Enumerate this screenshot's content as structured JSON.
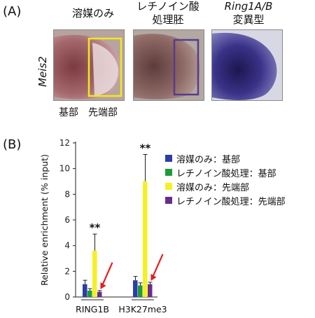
{
  "panelA": {
    "label": "(A)",
    "gene": "Meis2",
    "columns": [
      {
        "line1": "溶媒のみ",
        "line2": ""
      },
      {
        "line1": "レチノイン酸",
        "line2": "処理胚"
      },
      {
        "line1": "Ring1A/B",
        "line2": "変異型"
      }
    ],
    "region_labels": {
      "proximal": "基部",
      "distal": "先端部"
    },
    "box_colors": {
      "vehicle": "#f0ea1c",
      "ra": "#5a3a8c"
    }
  },
  "panelB": {
    "label": "(B)",
    "significance": "**"
  },
  "chart_data": {
    "type": "bar",
    "ylabel": "Relative enrichment (% input)",
    "ylim": [
      0,
      12
    ],
    "yticks": [
      0,
      2,
      4,
      6,
      8,
      10,
      12
    ],
    "categories": [
      "RING1B",
      "H3K27me3"
    ],
    "series": [
      {
        "name": "溶媒のみ：基部",
        "color": "#2a3ea8",
        "values": [
          1.0,
          1.3
        ],
        "errors": [
          0.3,
          0.3
        ]
      },
      {
        "name": "レチノイン酸処理：基部",
        "color": "#1e9a3c",
        "values": [
          0.5,
          0.9
        ],
        "errors": [
          0.15,
          0.2
        ]
      },
      {
        "name": "溶媒のみ：先端部",
        "color": "#f5f025",
        "values": [
          3.6,
          9.0
        ],
        "errors": [
          1.3,
          2.1
        ]
      },
      {
        "name": "レチノイン酸処理：先端部",
        "color": "#6a2c8c",
        "values": [
          0.4,
          1.0
        ],
        "errors": [
          0.1,
          0.15
        ]
      }
    ],
    "annotations": [
      {
        "category": "RING1B",
        "text": "**"
      },
      {
        "category": "H3K27me3",
        "text": "**"
      }
    ],
    "arrow_color": "#e02020"
  }
}
